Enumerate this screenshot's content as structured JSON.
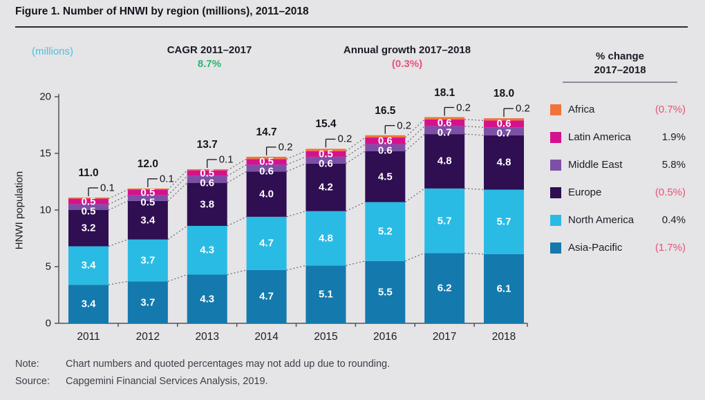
{
  "title": "Figure 1. Number of HNWI by region (millions), 2011–2018",
  "header": {
    "units_label": "(millions)",
    "cagr_label": "CAGR 2011–2017",
    "cagr_value": "8.7%",
    "growth_label": "Annual growth 2017–2018",
    "growth_value": "(0.3%)"
  },
  "legend": {
    "title_line1": "% change",
    "title_line2": "2017–2018",
    "items": [
      {
        "label": "Africa",
        "value": "(0.7%)",
        "negative": true,
        "color": "#f0743a"
      },
      {
        "label": "Latin America",
        "value": "1.9%",
        "negative": false,
        "color": "#d5128e"
      },
      {
        "label": "Middle East",
        "value": "5.8%",
        "negative": false,
        "color": "#7c50a6"
      },
      {
        "label": "Europe",
        "value": "(0.5%)",
        "negative": true,
        "color": "#2f0e51"
      },
      {
        "label": "North America",
        "value": "0.4%",
        "negative": false,
        "color": "#29bbe4"
      },
      {
        "label": "Asia-Pacific",
        "value": "(1.7%)",
        "negative": true,
        "color": "#1479ad"
      }
    ]
  },
  "chart_data": {
    "type": "bar",
    "stacked": true,
    "title": "Number of HNWI by region (millions), 2011–2018",
    "xlabel": "",
    "ylabel": "HNWI population",
    "ylim": [
      0,
      20
    ],
    "yticks": [
      0,
      5,
      10,
      15,
      20
    ],
    "grid": false,
    "legend_position": "right",
    "categories": [
      "2011",
      "2012",
      "2013",
      "2014",
      "2015",
      "2016",
      "2017",
      "2018"
    ],
    "series": [
      {
        "name": "Asia-Pacific",
        "color": "#1479ad",
        "values": [
          3.4,
          3.7,
          4.3,
          4.7,
          5.1,
          5.5,
          6.2,
          6.1
        ]
      },
      {
        "name": "North America",
        "color": "#29bbe4",
        "values": [
          3.4,
          3.7,
          4.3,
          4.7,
          4.8,
          5.2,
          5.7,
          5.7
        ]
      },
      {
        "name": "Europe",
        "color": "#2f0e51",
        "values": [
          3.2,
          3.4,
          3.8,
          4.0,
          4.2,
          4.5,
          4.8,
          4.8
        ]
      },
      {
        "name": "Middle East",
        "color": "#7c50a6",
        "values": [
          0.5,
          0.5,
          0.6,
          0.6,
          0.6,
          0.6,
          0.7,
          0.7
        ]
      },
      {
        "name": "Latin America",
        "color": "#d5128e",
        "values": [
          0.5,
          0.5,
          0.5,
          0.5,
          0.5,
          0.6,
          0.6,
          0.6
        ]
      },
      {
        "name": "Africa",
        "color": "#f0743a",
        "values": [
          0.1,
          0.1,
          0.1,
          0.2,
          0.2,
          0.2,
          0.2,
          0.2
        ]
      }
    ],
    "totals": [
      "11.0",
      "12.0",
      "13.7",
      "14.7",
      "15.4",
      "16.5",
      "18.1",
      "18.0"
    ],
    "africa_callouts": [
      "0.1",
      "0.1",
      "0.1",
      "0.2",
      "0.2",
      "0.2",
      "0.2",
      "0.2"
    ],
    "annotations": "Africa values shown via bracket callouts above each bar; dashed lines connect segment boundaries between adjacent bars"
  },
  "footer": {
    "note_label": "Note:",
    "note_text": "Chart numbers and quoted percentages may not add up due to rounding.",
    "source_label": "Source:",
    "source_text": "Capgemini Financial Services Analysis, 2019."
  },
  "colors": {
    "background": "#e5e4e6",
    "title_text": "#14141d",
    "axis": "#50505c",
    "dashed_connector": "#66666e",
    "green_accent": "#2db572",
    "pink_accent": "#e4547a",
    "cyan_accent": "#4ac0e2"
  }
}
